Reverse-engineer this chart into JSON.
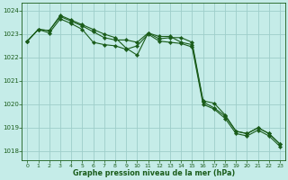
{
  "title": "Graphe pression niveau de la mer (hPa)",
  "background_color": "#c5ece8",
  "grid_color": "#9ececa",
  "line_color": "#1a5c1a",
  "marker_color": "#1a5c1a",
  "xlim": [
    -0.5,
    23.5
  ],
  "ylim": [
    1017.6,
    1024.35
  ],
  "yticks": [
    1018,
    1019,
    1020,
    1021,
    1022,
    1023,
    1024
  ],
  "xticks": [
    0,
    1,
    2,
    3,
    4,
    5,
    6,
    7,
    8,
    9,
    10,
    11,
    12,
    13,
    14,
    15,
    16,
    17,
    18,
    19,
    20,
    21,
    22,
    23
  ],
  "series1": [
    1022.7,
    1023.2,
    1023.15,
    1023.75,
    1023.55,
    1023.35,
    1023.1,
    1022.85,
    1022.75,
    1022.75,
    1022.65,
    1023.05,
    1022.8,
    1022.85,
    1022.85,
    1022.65,
    1020.15,
    1020.05,
    1019.55,
    1018.85,
    1018.75,
    1019.0,
    1018.75,
    1018.3
  ],
  "series2": [
    1022.7,
    1023.2,
    1023.15,
    1023.8,
    1023.6,
    1023.4,
    1023.2,
    1023.0,
    1022.85,
    1022.4,
    1022.1,
    1023.05,
    1022.9,
    1022.9,
    1022.65,
    1022.55,
    1020.1,
    1019.85,
    1019.5,
    1018.85,
    1018.75,
    1019.0,
    1018.75,
    1018.3
  ],
  "series3": [
    1022.7,
    1023.2,
    1023.05,
    1023.65,
    1023.45,
    1023.2,
    1022.65,
    1022.55,
    1022.5,
    1022.35,
    1022.5,
    1023.0,
    1022.7,
    1022.65,
    1022.6,
    1022.45,
    1020.0,
    1019.8,
    1019.4,
    1018.75,
    1018.65,
    1018.9,
    1018.65,
    1018.2
  ]
}
